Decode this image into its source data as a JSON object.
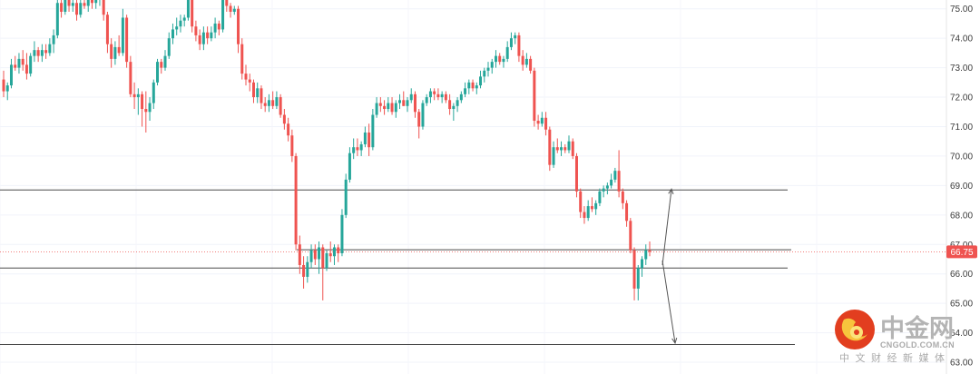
{
  "chart_data": {
    "type": "candlestick",
    "title": "",
    "xlabel": "",
    "ylabel": "",
    "ylim": [
      62.6,
      75.3
    ],
    "y_ticks": [
      "75.00",
      "74.00",
      "73.00",
      "72.00",
      "71.00",
      "70.00",
      "69.00",
      "68.00",
      "67.00",
      "66.00",
      "65.00",
      "64.00",
      "63.00"
    ],
    "current_price": "66.75",
    "current_price_value": 66.75,
    "grid": true,
    "up_color": "#26a69a",
    "down_color": "#ef5350",
    "horizontal_levels": [
      68.85,
      66.82,
      66.2,
      63.6
    ],
    "arrows": [
      {
        "from": 66.3,
        "to": 68.88
      },
      {
        "from": 66.45,
        "to": 63.65
      }
    ],
    "candles": [
      [
        72.6,
        72.9,
        72.0,
        72.2
      ],
      [
        72.2,
        72.5,
        71.9,
        72.4
      ],
      [
        72.4,
        73.3,
        72.3,
        73.1
      ],
      [
        73.1,
        73.4,
        72.9,
        73.0
      ],
      [
        73.0,
        73.5,
        72.8,
        73.3
      ],
      [
        73.3,
        73.6,
        72.9,
        73.1
      ],
      [
        73.1,
        73.5,
        72.6,
        72.8
      ],
      [
        72.8,
        73.5,
        72.7,
        73.4
      ],
      [
        73.4,
        73.9,
        73.2,
        73.6
      ],
      [
        73.6,
        73.7,
        73.2,
        73.4
      ],
      [
        73.4,
        73.8,
        73.2,
        73.6
      ],
      [
        73.6,
        73.8,
        73.3,
        73.5
      ],
      [
        73.5,
        74.0,
        73.4,
        73.8
      ],
      [
        73.8,
        74.3,
        73.5,
        74.1
      ],
      [
        74.1,
        75.5,
        74.0,
        75.2
      ],
      [
        75.2,
        75.5,
        74.7,
        74.9
      ],
      [
        74.9,
        75.5,
        74.8,
        75.3
      ],
      [
        75.3,
        75.5,
        74.9,
        75.1
      ],
      [
        75.1,
        75.4,
        74.9,
        75.2
      ],
      [
        75.2,
        75.3,
        74.6,
        74.8
      ],
      [
        74.8,
        75.4,
        74.7,
        75.2
      ],
      [
        75.2,
        75.4,
        75.0,
        75.1
      ],
      [
        75.1,
        75.4,
        74.9,
        75.3
      ],
      [
        75.3,
        75.5,
        75.0,
        75.2
      ],
      [
        75.2,
        75.5,
        75.0,
        75.3
      ],
      [
        75.3,
        75.7,
        75.1,
        75.5
      ],
      [
        75.5,
        75.7,
        74.6,
        74.8
      ],
      [
        74.8,
        74.9,
        73.5,
        73.8
      ],
      [
        73.8,
        74.0,
        73.0,
        73.3
      ],
      [
        73.3,
        73.9,
        73.1,
        73.7
      ],
      [
        73.7,
        74.1,
        73.4,
        73.5
      ],
      [
        73.5,
        75.0,
        73.4,
        74.7
      ],
      [
        74.7,
        74.8,
        73.0,
        73.2
      ],
      [
        73.2,
        73.4,
        72.0,
        72.1
      ],
      [
        72.1,
        72.5,
        71.6,
        72.0
      ],
      [
        72.0,
        72.3,
        71.4,
        72.1
      ],
      [
        72.1,
        72.2,
        71.0,
        71.6
      ],
      [
        71.6,
        72.2,
        70.8,
        71.5
      ],
      [
        71.5,
        72.0,
        71.2,
        71.8
      ],
      [
        71.8,
        72.6,
        71.6,
        72.5
      ],
      [
        72.5,
        73.3,
        72.4,
        73.2
      ],
      [
        73.2,
        73.3,
        72.8,
        73.0
      ],
      [
        73.0,
        73.6,
        72.9,
        73.4
      ],
      [
        73.4,
        74.2,
        73.3,
        74.0
      ],
      [
        74.0,
        74.5,
        73.8,
        74.3
      ],
      [
        74.3,
        74.7,
        74.1,
        74.4
      ],
      [
        74.4,
        74.8,
        74.2,
        74.6
      ],
      [
        74.6,
        74.8,
        74.4,
        74.7
      ],
      [
        74.7,
        75.5,
        74.6,
        75.3
      ],
      [
        75.3,
        75.4,
        74.2,
        74.4
      ],
      [
        74.4,
        74.6,
        73.9,
        74.1
      ],
      [
        74.1,
        74.3,
        73.6,
        73.8
      ],
      [
        73.8,
        74.4,
        73.6,
        74.2
      ],
      [
        74.2,
        74.4,
        73.8,
        74.0
      ],
      [
        74.0,
        74.4,
        73.9,
        74.2
      ],
      [
        74.2,
        74.7,
        74.0,
        74.5
      ],
      [
        74.5,
        74.6,
        74.1,
        74.3
      ],
      [
        74.3,
        75.5,
        74.2,
        75.3
      ],
      [
        75.3,
        75.5,
        74.9,
        75.1
      ],
      [
        75.1,
        75.2,
        74.7,
        74.9
      ],
      [
        74.9,
        75.1,
        74.8,
        75.0
      ],
      [
        75.0,
        75.1,
        73.5,
        73.8
      ],
      [
        73.8,
        74.0,
        72.6,
        72.8
      ],
      [
        72.8,
        73.1,
        72.4,
        72.6
      ],
      [
        72.6,
        72.8,
        72.2,
        72.5
      ],
      [
        72.5,
        72.6,
        71.8,
        72.0
      ],
      [
        72.0,
        72.5,
        71.8,
        72.3
      ],
      [
        72.3,
        72.4,
        71.6,
        71.8
      ],
      [
        71.8,
        72.0,
        71.5,
        71.7
      ],
      [
        71.7,
        72.1,
        71.5,
        71.9
      ],
      [
        71.9,
        72.2,
        71.6,
        71.7
      ],
      [
        71.7,
        72.2,
        71.6,
        72.0
      ],
      [
        72.0,
        72.1,
        71.3,
        71.4
      ],
      [
        71.4,
        71.6,
        70.9,
        71.1
      ],
      [
        71.1,
        71.3,
        70.5,
        70.7
      ],
      [
        70.7,
        70.9,
        69.8,
        70.0
      ],
      [
        70.0,
        70.1,
        66.8,
        67.0
      ],
      [
        67.0,
        67.3,
        66.0,
        66.3
      ],
      [
        66.3,
        66.6,
        65.5,
        65.9
      ],
      [
        65.9,
        66.6,
        65.7,
        66.4
      ],
      [
        66.4,
        67.0,
        66.2,
        66.8
      ],
      [
        66.8,
        67.0,
        66.3,
        66.5
      ],
      [
        66.5,
        67.1,
        66.0,
        66.9
      ],
      [
        66.9,
        67.0,
        65.1,
        66.2
      ],
      [
        66.2,
        66.8,
        66.1,
        66.7
      ],
      [
        66.7,
        67.1,
        66.4,
        66.6
      ],
      [
        66.6,
        67.0,
        66.3,
        66.9
      ],
      [
        66.9,
        67.0,
        66.4,
        66.7
      ],
      [
        66.7,
        68.2,
        66.6,
        68.0
      ],
      [
        68.0,
        69.4,
        67.9,
        69.2
      ],
      [
        69.2,
        70.3,
        69.1,
        70.1
      ],
      [
        70.1,
        70.6,
        69.9,
        70.3
      ],
      [
        70.3,
        70.6,
        70.0,
        70.2
      ],
      [
        70.2,
        70.5,
        70.0,
        70.4
      ],
      [
        70.4,
        71.0,
        70.3,
        70.8
      ],
      [
        70.8,
        71.1,
        70.0,
        70.3
      ],
      [
        70.3,
        71.6,
        70.2,
        71.4
      ],
      [
        71.4,
        72.0,
        71.3,
        71.8
      ],
      [
        71.8,
        72.0,
        71.5,
        71.7
      ],
      [
        71.7,
        71.9,
        71.4,
        71.6
      ],
      [
        71.6,
        72.0,
        71.5,
        71.8
      ],
      [
        71.8,
        72.0,
        71.4,
        71.5
      ],
      [
        71.5,
        71.9,
        71.3,
        71.8
      ],
      [
        71.8,
        72.1,
        71.6,
        71.9
      ],
      [
        71.9,
        72.2,
        71.7,
        71.7
      ],
      [
        71.7,
        72.0,
        71.5,
        71.9
      ],
      [
        71.9,
        72.3,
        71.8,
        72.1
      ],
      [
        72.1,
        72.2,
        71.3,
        71.5
      ],
      [
        71.5,
        71.6,
        70.6,
        71.0
      ],
      [
        71.0,
        71.9,
        70.9,
        71.8
      ],
      [
        71.8,
        72.1,
        71.7,
        72.0
      ],
      [
        72.0,
        72.3,
        71.8,
        72.2
      ],
      [
        72.2,
        72.3,
        71.9,
        72.1
      ],
      [
        72.1,
        72.3,
        71.9,
        72.0
      ],
      [
        72.0,
        72.2,
        71.8,
        72.1
      ],
      [
        72.1,
        72.2,
        71.8,
        71.9
      ],
      [
        71.9,
        72.1,
        71.4,
        71.6
      ],
      [
        71.6,
        71.8,
        71.2,
        71.7
      ],
      [
        71.7,
        72.0,
        71.5,
        71.9
      ],
      [
        71.9,
        72.2,
        71.8,
        72.1
      ],
      [
        72.1,
        72.5,
        72.0,
        72.3
      ],
      [
        72.3,
        72.6,
        72.1,
        72.5
      ],
      [
        72.5,
        72.6,
        72.2,
        72.3
      ],
      [
        72.3,
        72.5,
        72.1,
        72.4
      ],
      [
        72.4,
        72.9,
        72.3,
        72.7
      ],
      [
        72.7,
        73.0,
        72.5,
        72.9
      ],
      [
        72.9,
        73.2,
        72.7,
        73.0
      ],
      [
        73.0,
        73.3,
        72.8,
        73.2
      ],
      [
        73.2,
        73.6,
        73.0,
        73.4
      ],
      [
        73.4,
        73.5,
        73.1,
        73.2
      ],
      [
        73.2,
        73.4,
        73.0,
        73.3
      ],
      [
        73.3,
        73.9,
        73.2,
        73.7
      ],
      [
        73.7,
        74.2,
        73.6,
        74.0
      ],
      [
        74.0,
        74.2,
        73.8,
        74.1
      ],
      [
        74.1,
        74.2,
        73.2,
        73.4
      ],
      [
        73.4,
        73.6,
        72.9,
        73.1
      ],
      [
        73.1,
        73.5,
        73.0,
        73.3
      ],
      [
        73.3,
        73.4,
        72.8,
        72.9
      ],
      [
        72.9,
        73.0,
        71.0,
        71.2
      ],
      [
        71.2,
        71.4,
        70.9,
        71.1
      ],
      [
        71.1,
        71.5,
        71.0,
        71.3
      ],
      [
        71.3,
        71.5,
        70.7,
        70.9
      ],
      [
        70.9,
        71.0,
        69.5,
        69.7
      ],
      [
        69.7,
        70.5,
        69.6,
        70.3
      ],
      [
        70.3,
        70.6,
        70.1,
        70.2
      ],
      [
        70.2,
        70.5,
        70.0,
        70.3
      ],
      [
        70.3,
        70.4,
        70.1,
        70.2
      ],
      [
        70.2,
        70.7,
        70.1,
        70.5
      ],
      [
        70.5,
        70.6,
        69.9,
        70.0
      ],
      [
        70.0,
        70.1,
        68.6,
        68.8
      ],
      [
        68.8,
        68.9,
        67.9,
        68.1
      ],
      [
        68.1,
        68.3,
        67.7,
        67.9
      ],
      [
        67.9,
        68.5,
        67.8,
        68.3
      ],
      [
        68.3,
        68.6,
        68.1,
        68.2
      ],
      [
        68.2,
        68.5,
        68.0,
        68.4
      ],
      [
        68.4,
        68.9,
        68.3,
        68.8
      ],
      [
        68.8,
        69.0,
        68.6,
        68.9
      ],
      [
        68.9,
        69.1,
        68.7,
        69.0
      ],
      [
        69.0,
        69.4,
        68.9,
        69.2
      ],
      [
        69.2,
        69.6,
        69.1,
        69.5
      ],
      [
        69.5,
        70.2,
        68.6,
        68.8
      ],
      [
        68.8,
        68.9,
        68.2,
        68.4
      ],
      [
        68.4,
        68.5,
        67.6,
        67.8
      ],
      [
        67.8,
        67.9,
        66.7,
        66.8
      ],
      [
        66.8,
        66.9,
        65.1,
        65.5
      ],
      [
        65.5,
        66.3,
        65.1,
        66.2
      ],
      [
        66.2,
        66.6,
        65.9,
        66.5
      ],
      [
        66.5,
        67.0,
        66.3,
        66.8
      ],
      [
        66.8,
        67.1,
        66.6,
        66.75
      ]
    ]
  },
  "logo": {
    "cn_text": "中金网",
    "en_text": "CNGOLD.COM.CN",
    "sub_text": "中文财经新媒体"
  }
}
